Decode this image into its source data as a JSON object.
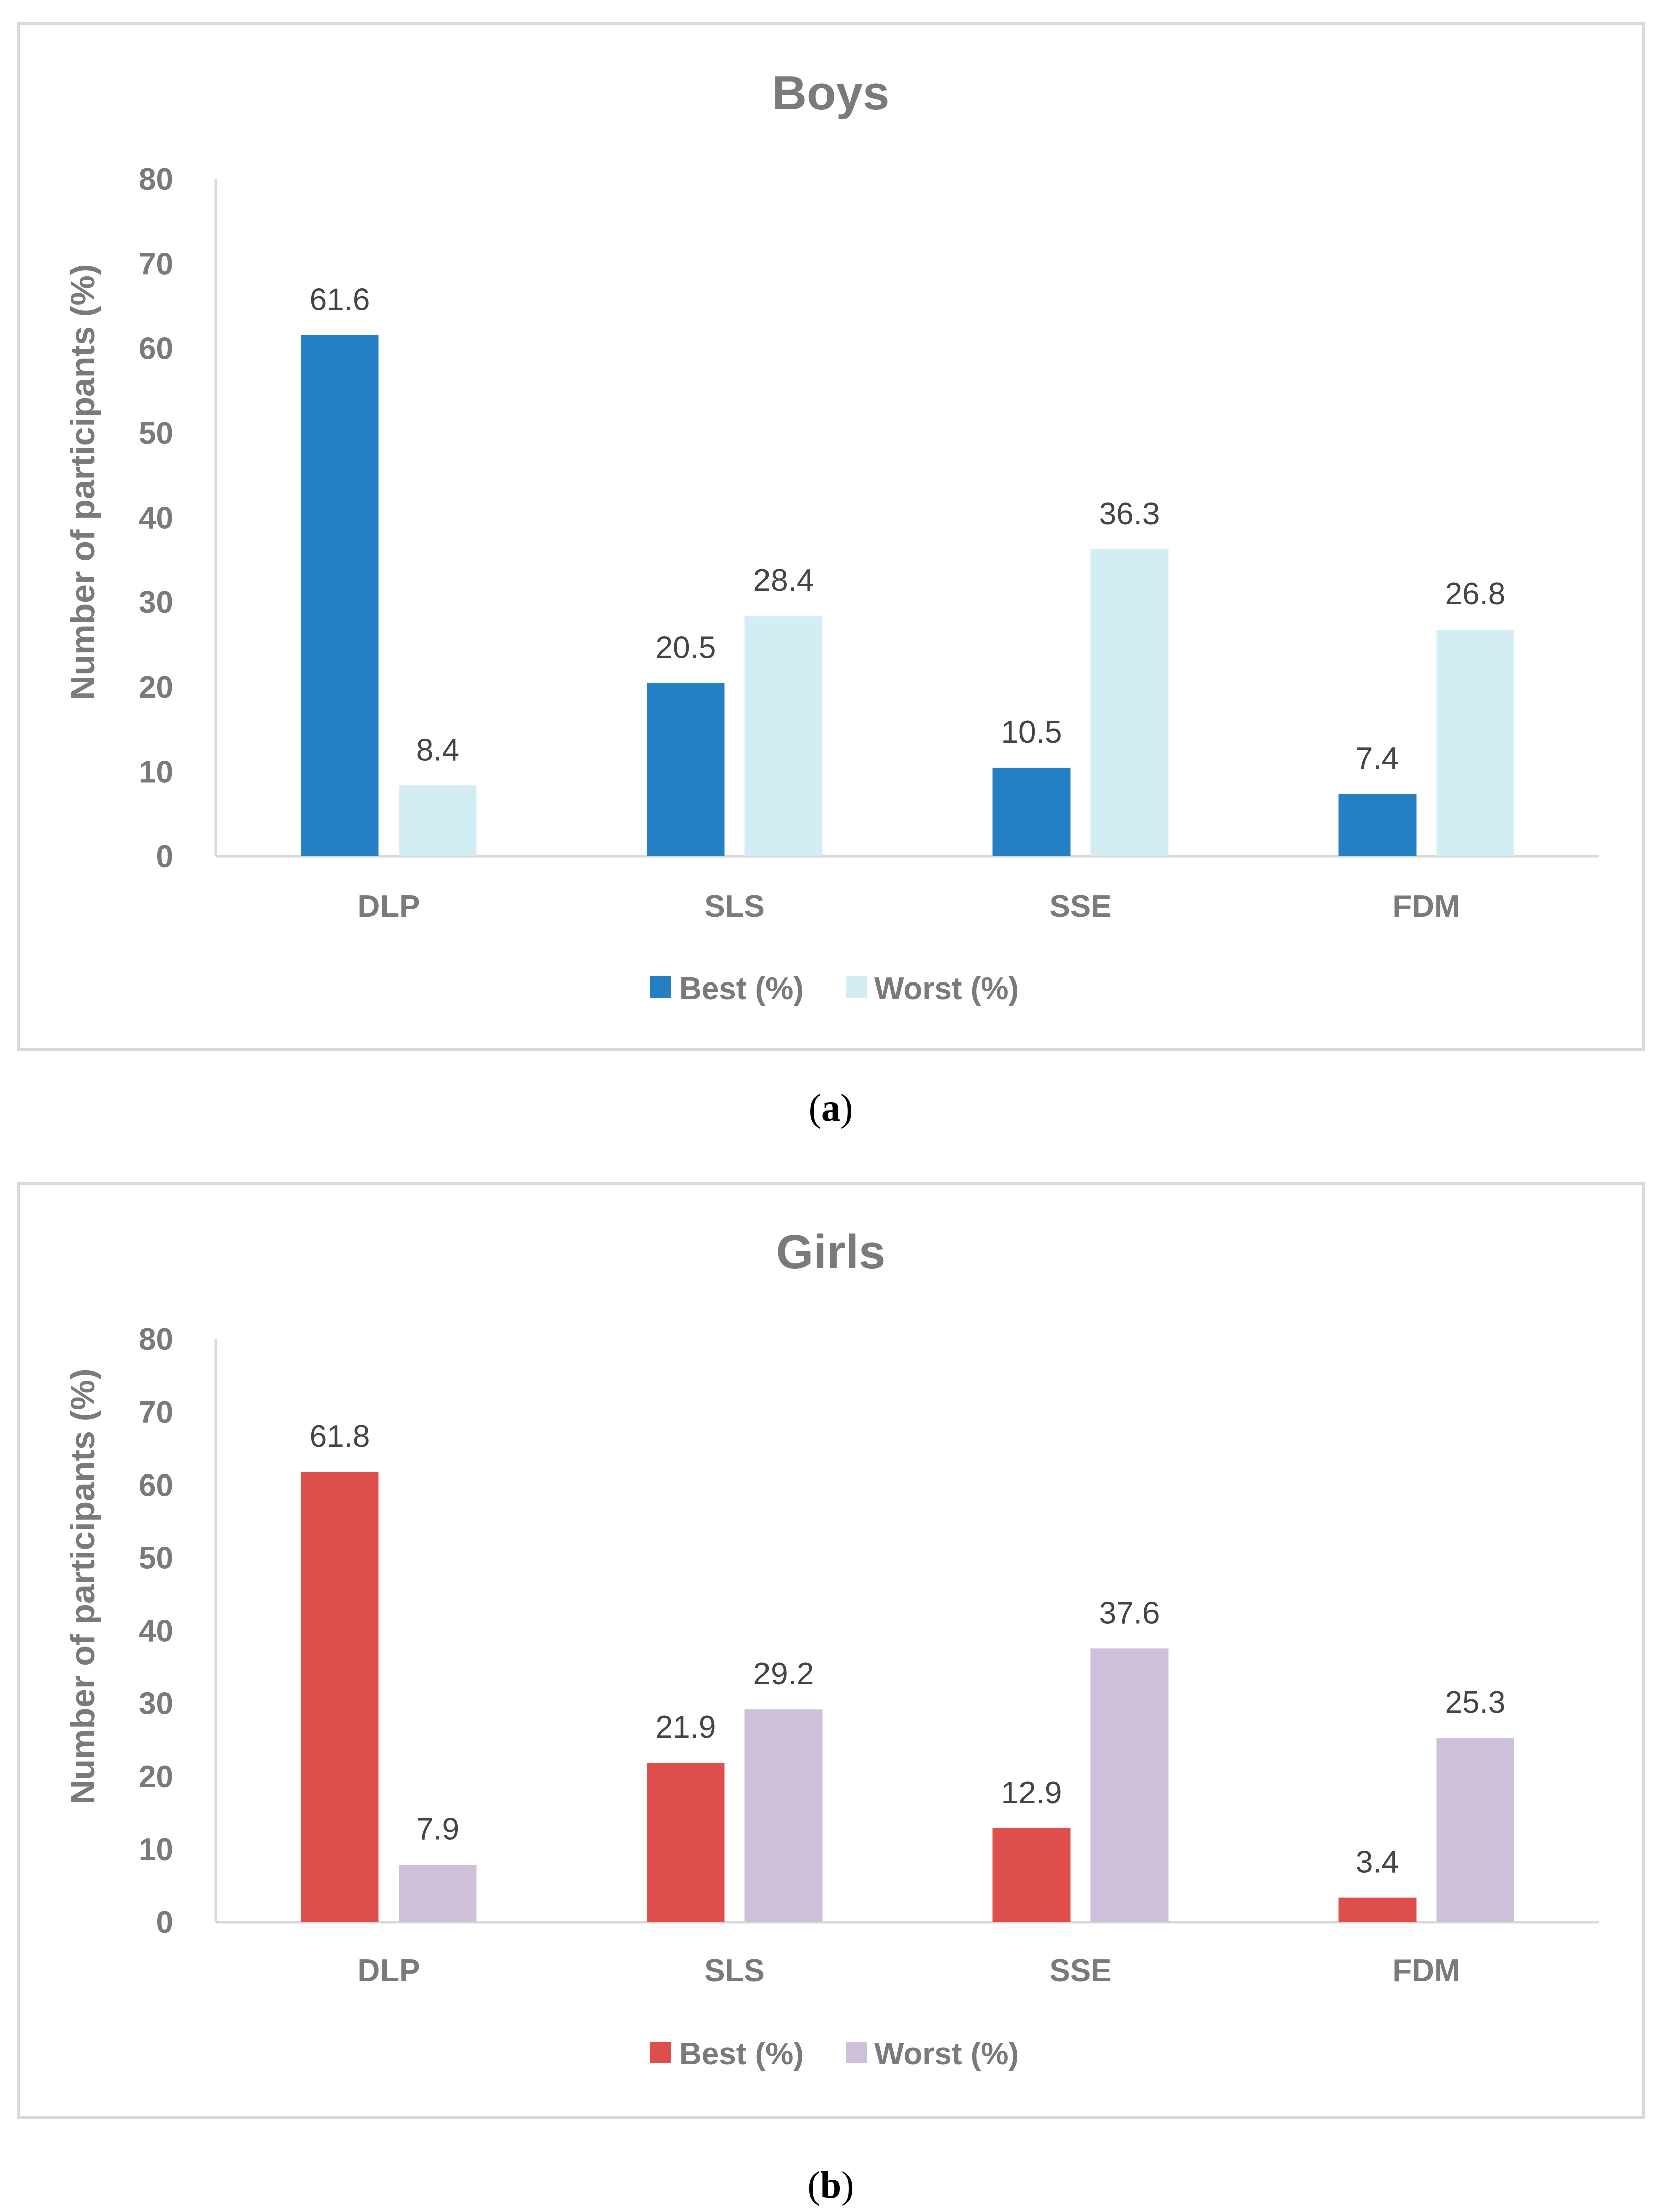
{
  "chart_data": [
    {
      "type": "bar",
      "title": "Boys",
      "caption_prefix": "(",
      "caption_letter": "a",
      "caption_suffix": ")",
      "categories": [
        "DLP",
        "SLS",
        "SSE",
        "FDM"
      ],
      "series": [
        {
          "name": "Best (%)",
          "values": [
            61.6,
            20.5,
            10.5,
            7.4
          ],
          "color": "#2580c3"
        },
        {
          "name": "Worst (%)",
          "values": [
            8.4,
            28.4,
            36.3,
            26.8
          ],
          "color": "#d3edf5"
        }
      ],
      "yticks": [
        "0",
        "10",
        "20",
        "30",
        "40",
        "50",
        "60",
        "70",
        "80"
      ],
      "ylabel": "Number of participants (%)",
      "xlabel": "",
      "ylim": [
        0,
        80
      ],
      "legend_position": "bottom"
    },
    {
      "type": "bar",
      "title": "Girls",
      "caption_prefix": "(",
      "caption_letter": "b",
      "caption_suffix": ")",
      "categories": [
        "DLP",
        "SLS",
        "SSE",
        "FDM"
      ],
      "series": [
        {
          "name": "Best (%)",
          "values": [
            61.8,
            21.9,
            12.9,
            3.4
          ],
          "color": "#dd4e4d"
        },
        {
          "name": "Worst (%)",
          "values": [
            7.9,
            29.2,
            37.6,
            25.3
          ],
          "color": "#cfc0d9"
        }
      ],
      "yticks": [
        "0",
        "10",
        "20",
        "30",
        "40",
        "50",
        "60",
        "70",
        "80"
      ],
      "ylabel": "Number of participants (%)",
      "xlabel": "",
      "ylim": [
        0,
        80
      ],
      "legend_position": "bottom"
    }
  ]
}
